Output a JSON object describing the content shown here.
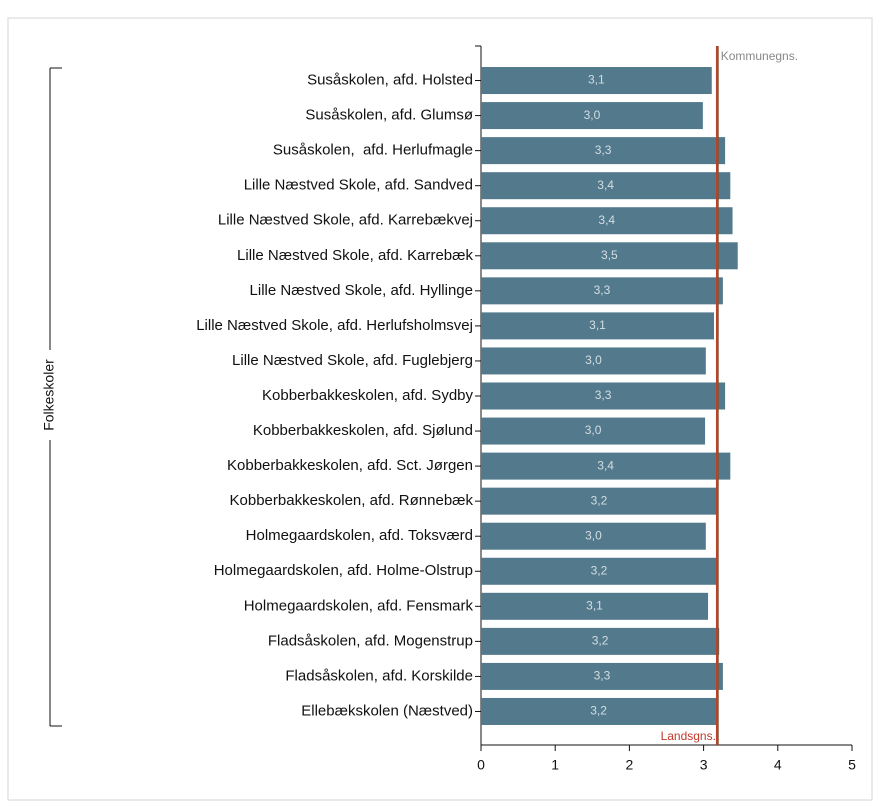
{
  "chart_data": {
    "type": "bar",
    "orientation": "horizontal",
    "categories": [
      "Susåskolen, afd. Holsted",
      "Susåskolen, afd. Glumsø",
      "Susåskolen,  afd. Herlufmagle",
      "Lille Næstved Skole, afd. Sandved",
      "Lille Næstved Skole, afd. Karrebækvej",
      "Lille Næstved Skole, afd. Karrebæk",
      "Lille Næstved Skole, afd. Hyllinge",
      "Lille Næstved Skole, afd. Herlufsholmsvej",
      "Lille Næstved Skole, afd. Fuglebjerg",
      "Kobberbakkeskolen, afd. Sydby",
      "Kobberbakkeskolen, afd. Sjølund",
      "Kobberbakkeskolen, afd. Sct. Jørgen",
      "Kobberbakkeskolen, afd. Rønnebæk",
      "Holmegaardskolen, afd. Toksværd",
      "Holmegaardskolen, afd. Holme-Olstrup",
      "Holmegaardskolen, afd. Fensmark",
      "Fladsåskolen, afd. Mogenstrup",
      "Fladsåskolen, afd. Korskilde",
      "Ellebækskolen (Næstved)"
    ],
    "values": [
      3.11,
      2.99,
      3.29,
      3.36,
      3.39,
      3.46,
      3.26,
      3.14,
      3.03,
      3.29,
      3.02,
      3.36,
      3.18,
      3.03,
      3.18,
      3.06,
      3.21,
      3.26,
      3.17
    ],
    "value_labels": [
      "3,1",
      "3,0",
      "3,3",
      "3,4",
      "3,4",
      "3,5",
      "3,3",
      "3,1",
      "3,0",
      "3,3",
      "3,0",
      "3,4",
      "3,2",
      "3,0",
      "3,2",
      "3,1",
      "3,2",
      "3,3",
      "3,2"
    ],
    "color": "#527a8c",
    "xlim": [
      0,
      5
    ],
    "xticks": [
      0,
      1,
      2,
      3,
      4,
      5
    ],
    "group_label": "Folkeskoler",
    "reference_lines": [
      {
        "label": "Kommunegns.",
        "value": 3.19,
        "color": "#8b4a2b",
        "label_color": "#888888",
        "label_position": "top"
      },
      {
        "label": "Landsgns.",
        "value": 3.18,
        "color": "#b5452a",
        "label_color": "#c0392b",
        "label_position": "bottom"
      }
    ]
  }
}
